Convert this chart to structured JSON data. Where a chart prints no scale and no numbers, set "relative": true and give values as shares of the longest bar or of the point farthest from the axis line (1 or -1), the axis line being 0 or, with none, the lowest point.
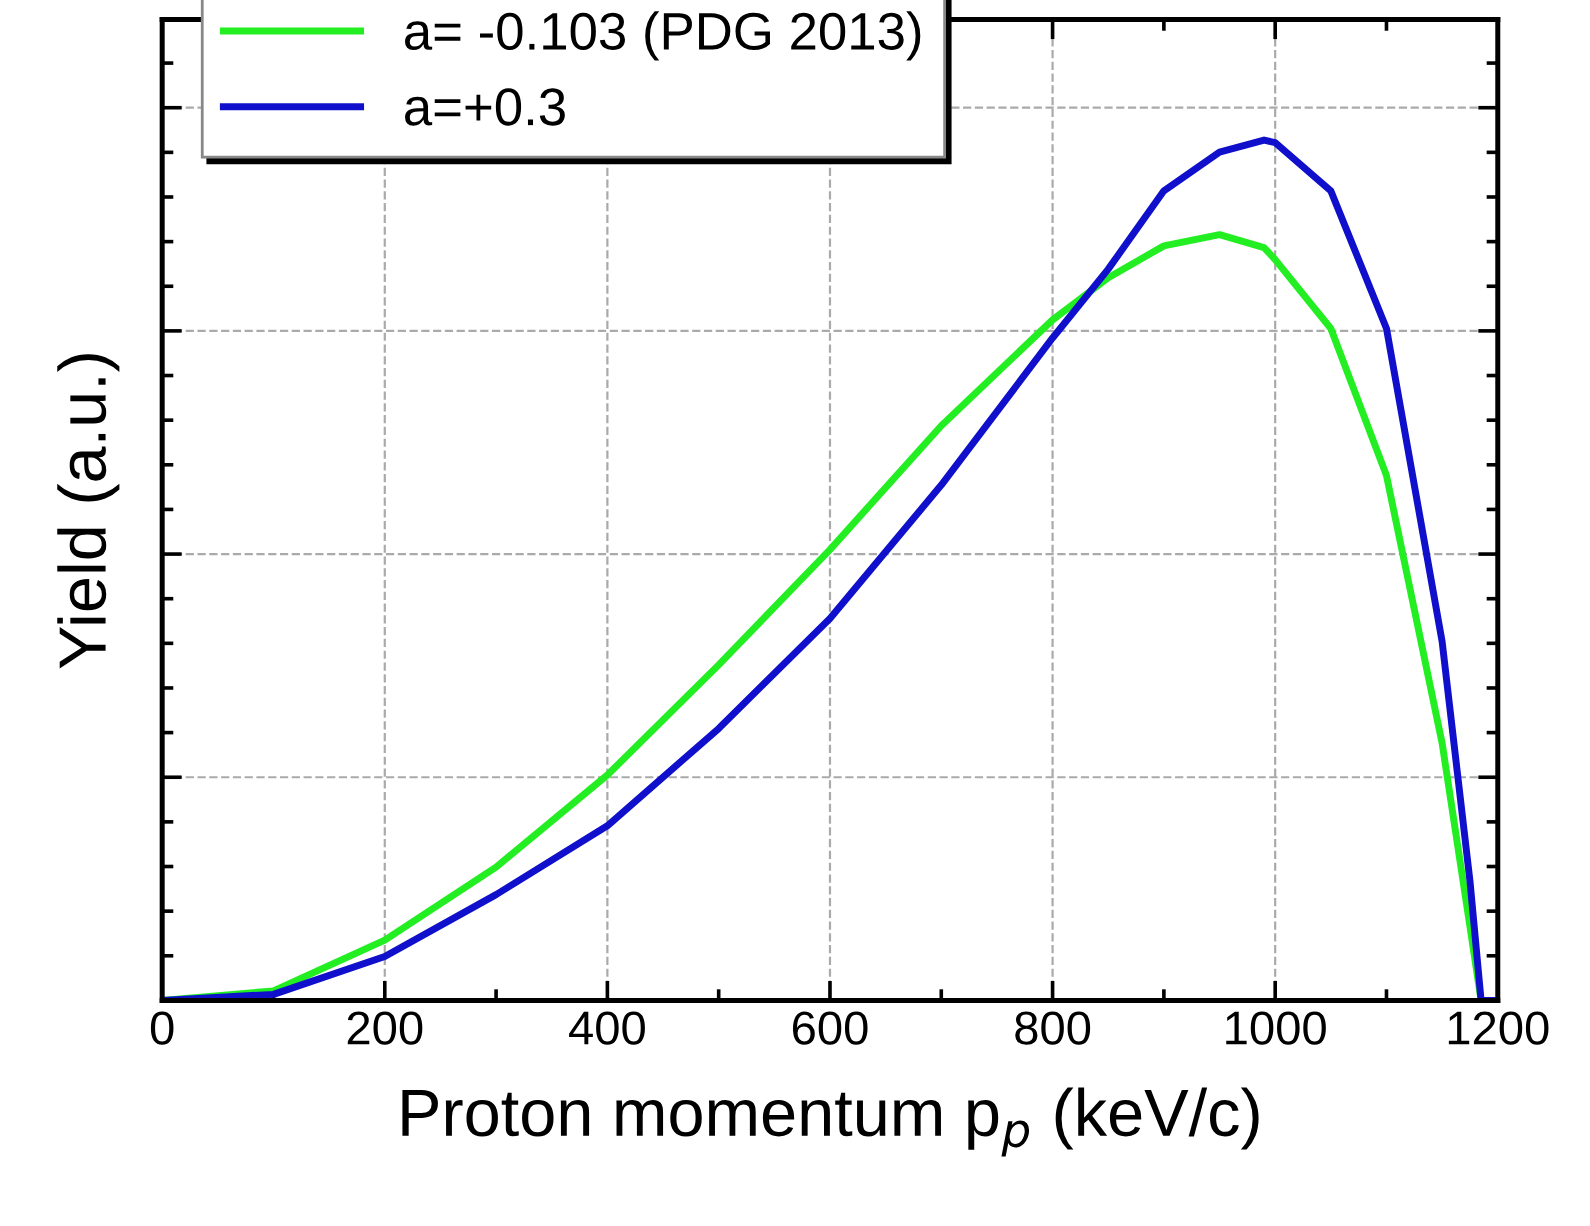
{
  "chart_data": {
    "type": "line",
    "xlabel": "Proton momentum p$_{p}$ (keV/c)",
    "ylabel": "Yield (a.u.)",
    "relative": true,
    "x": [
      0,
      100,
      200,
      300,
      400,
      500,
      600,
      700,
      800,
      850,
      900,
      950,
      990,
      1000,
      1050,
      1100,
      1150,
      1175,
      1185,
      1200
    ],
    "xlim": [
      0,
      1200
    ],
    "xticks": [
      0,
      200,
      400,
      600,
      800,
      1000,
      1200
    ],
    "grid": true,
    "legend": "top left",
    "marker": "none",
    "line_style": "solid",
    "series": [
      {
        "name": "a= -0.103 (PDG 2013)",
        "color": "#22ee22",
        "values": [
          0,
          0.011,
          0.07,
          0.155,
          0.262,
          0.39,
          0.524,
          0.668,
          0.791,
          0.84,
          0.877,
          0.89,
          0.875,
          0.861,
          0.781,
          0.61,
          0.299,
          0.086,
          0,
          0
        ]
      },
      {
        "name": "a=+0.3",
        "color": "#1010cc",
        "values": [
          0,
          0.007,
          0.051,
          0.123,
          0.203,
          0.316,
          0.444,
          0.599,
          0.77,
          0.85,
          0.941,
          0.986,
          1.0,
          0.997,
          0.941,
          0.781,
          0.417,
          0.139,
          0,
          0
        ]
      }
    ]
  }
}
